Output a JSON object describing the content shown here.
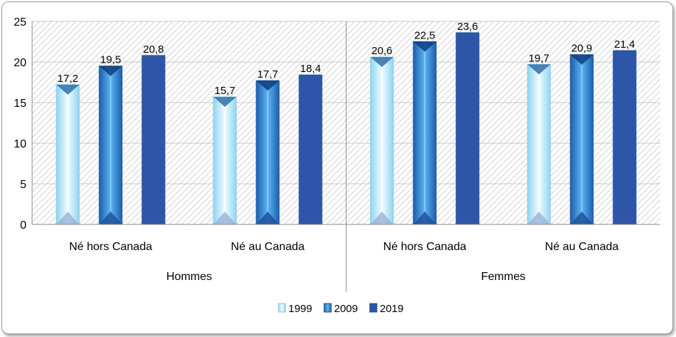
{
  "chart_data": {
    "type": "bar",
    "groups": [
      {
        "label": "Hommes",
        "categories": [
          "Né hors Canada",
          "Né au Canada"
        ]
      },
      {
        "label": "Femmes",
        "categories": [
          "Né hors Canada",
          "Né au Canada"
        ]
      }
    ],
    "series": [
      {
        "name": "1999",
        "values": [
          17.2,
          15.7,
          20.6,
          19.7
        ],
        "labels": [
          "17,2",
          "15,7",
          "20,6",
          "19,7"
        ],
        "color": "#cdeefa"
      },
      {
        "name": "2009",
        "values": [
          19.5,
          17.7,
          22.5,
          20.9
        ],
        "labels": [
          "19,5",
          "17,7",
          "22,5",
          "20,9"
        ],
        "color": "#2f86d6"
      },
      {
        "name": "2019",
        "values": [
          20.8,
          18.4,
          23.6,
          21.4
        ],
        "labels": [
          "20,8",
          "18,4",
          "23,6",
          "21,4"
        ],
        "color": "#2e56a8"
      }
    ],
    "yticks": [
      "0",
      "5",
      "10",
      "15",
      "20",
      "25"
    ],
    "ylim": [
      0,
      25
    ],
    "legend_position": "bottom",
    "grid": true
  }
}
